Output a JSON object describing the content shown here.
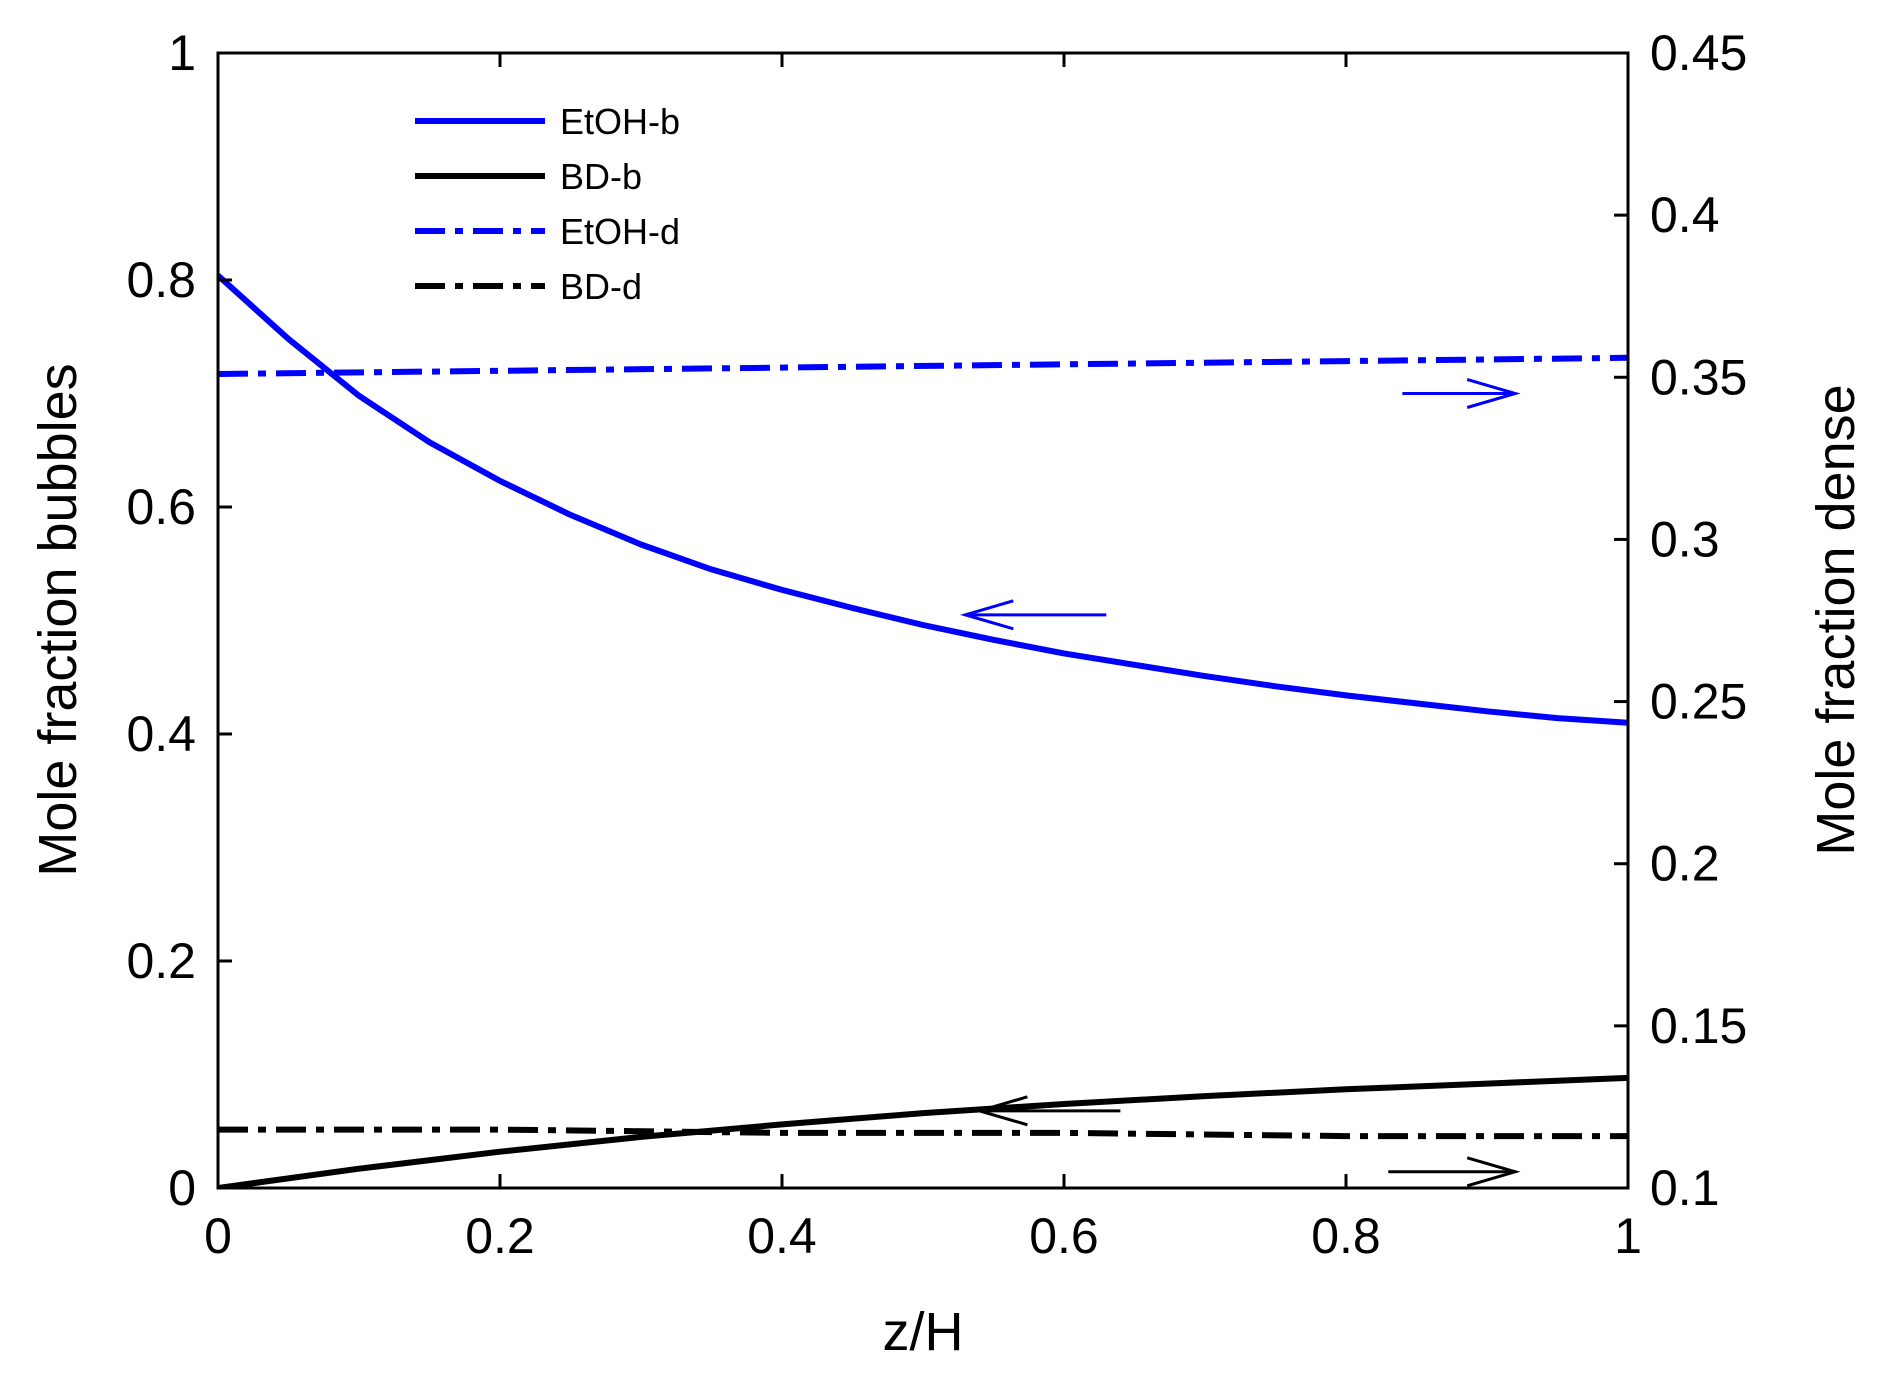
{
  "chart_data": {
    "type": "line",
    "xlabel": "z/H",
    "ylabel_left": "Mole fraction bubbles",
    "ylabel_right": "Mole fraction dense",
    "xlim": [
      0,
      1
    ],
    "ylim_left": [
      0,
      1
    ],
    "ylim_right": [
      0.1,
      0.45
    ],
    "x_ticks": [
      "0",
      "0.2",
      "0.4",
      "0.6",
      "0.8",
      "1"
    ],
    "y_left_ticks": [
      "0",
      "0.2",
      "0.4",
      "0.6",
      "0.8",
      "1"
    ],
    "y_right_ticks": [
      "0.1",
      "0.15",
      "0.2",
      "0.25",
      "0.3",
      "0.35",
      "0.4",
      "0.45"
    ],
    "grid": false,
    "legend_position": "top-left",
    "series": [
      {
        "name": "EtOH-b",
        "axis": "left",
        "color": "#0000ff",
        "style": "solid",
        "x": [
          0,
          0.05,
          0.1,
          0.15,
          0.2,
          0.25,
          0.3,
          0.35,
          0.4,
          0.45,
          0.5,
          0.55,
          0.6,
          0.65,
          0.7,
          0.75,
          0.8,
          0.85,
          0.9,
          0.95,
          1
        ],
        "y": [
          0.804,
          0.748,
          0.698,
          0.657,
          0.623,
          0.593,
          0.567,
          0.545,
          0.527,
          0.511,
          0.496,
          0.483,
          0.471,
          0.461,
          0.451,
          0.442,
          0.434,
          0.427,
          0.42,
          0.414,
          0.41
        ]
      },
      {
        "name": "BD-b",
        "axis": "left",
        "color": "#000000",
        "style": "solid",
        "x": [
          0,
          0.1,
          0.2,
          0.3,
          0.4,
          0.5,
          0.6,
          0.7,
          0.8,
          0.9,
          1
        ],
        "y": [
          0.0,
          0.017,
          0.032,
          0.045,
          0.056,
          0.066,
          0.074,
          0.081,
          0.087,
          0.092,
          0.097
        ]
      },
      {
        "name": "EtOH-d",
        "axis": "right",
        "color": "#0000ff",
        "style": "dashdot",
        "x": [
          0,
          0.2,
          0.4,
          0.6,
          0.8,
          1
        ],
        "y": [
          0.351,
          0.352,
          0.353,
          0.354,
          0.355,
          0.356
        ]
      },
      {
        "name": "BD-d",
        "axis": "right",
        "color": "#000000",
        "style": "dashdot",
        "x": [
          0,
          0.2,
          0.4,
          0.6,
          0.8,
          1
        ],
        "y": [
          0.118,
          0.118,
          0.117,
          0.117,
          0.116,
          0.116
        ]
      }
    ],
    "annotations": [
      {
        "type": "arrow",
        "direction": "left",
        "color": "#0000ff",
        "points_to": "left axis"
      },
      {
        "type": "arrow",
        "direction": "right",
        "color": "#0000ff",
        "points_to": "right axis"
      },
      {
        "type": "arrow",
        "direction": "left",
        "color": "#000000",
        "points_to": "left axis"
      },
      {
        "type": "arrow",
        "direction": "right",
        "color": "#000000",
        "points_to": "right axis"
      }
    ]
  }
}
